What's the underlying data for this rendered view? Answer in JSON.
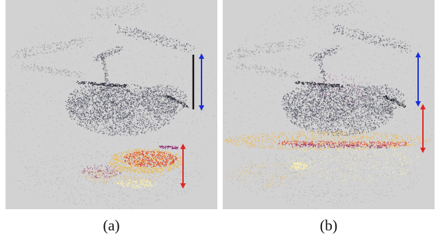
{
  "figure": {
    "panels": [
      {
        "id": "a",
        "caption": "(a)"
      },
      {
        "id": "b",
        "caption": "(b)"
      }
    ]
  },
  "colors": {
    "background": "#d2d2d2",
    "cloud_dark": "#3e3e52",
    "cloud_light": "#8a8a8a",
    "error_hot_1": "#f2b53a",
    "error_hot_2": "#d8332a",
    "error_hot_3": "#8a1c6e",
    "error_pale": "#fff2a8",
    "arrow_blue": "#1a2fd6",
    "arrow_red": "#e02424",
    "scale_bar": "#111111"
  }
}
